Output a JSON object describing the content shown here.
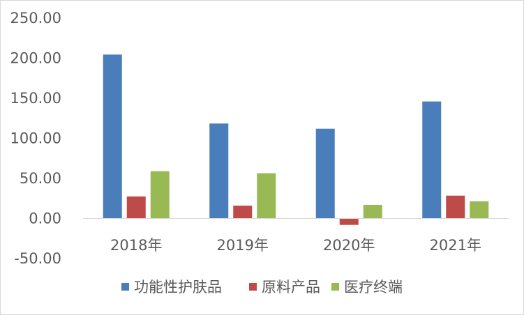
{
  "chart_data": {
    "type": "bar",
    "title": "",
    "xlabel": "",
    "ylabel": "",
    "categories": [
      "2018年",
      "2019年",
      "2020年",
      "2021年"
    ],
    "series": [
      {
        "name": "功能性护肤品",
        "color": "#4a7ebb",
        "values": [
          204.5,
          118.5,
          112.0,
          146.0
        ]
      },
      {
        "name": "原料产品",
        "color": "#be4b48",
        "values": [
          27.5,
          16.0,
          -8.0,
          28.5
        ]
      },
      {
        "name": "医疗终端",
        "color": "#98b954",
        "values": [
          59.0,
          56.5,
          17.0,
          21.5
        ]
      }
    ],
    "ylim": [
      -50,
      250
    ],
    "yticks": [
      "250.00",
      "200.00",
      "150.00",
      "100.00",
      "50.00",
      "0.00",
      "-50.00"
    ],
    "grid": false,
    "legend_position": "bottom"
  }
}
